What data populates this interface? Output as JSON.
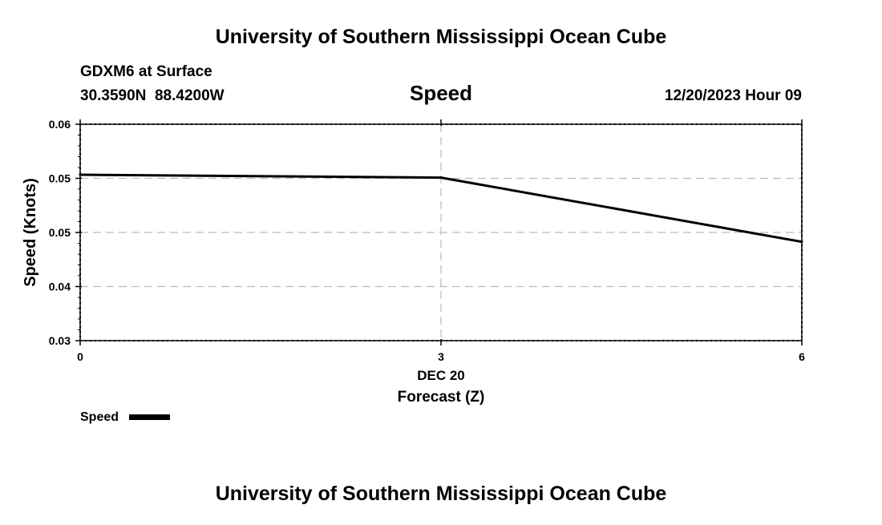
{
  "header": {
    "title": "University of Southern Mississippi Ocean Cube",
    "station": "GDXM6 at Surface",
    "coords": "30.3590N  88.4200W",
    "datetime": "12/20/2023 Hour 09"
  },
  "footer": {
    "title": "University of Southern Mississippi Ocean Cube"
  },
  "chart_data": {
    "type": "line",
    "title": "Speed",
    "xlabel": "Forecast (Z)",
    "xlabel_date": "DEC 20",
    "ylabel": "Speed (Knots)",
    "xlim": [
      0,
      6
    ],
    "ylim": [
      0.03,
      0.06
    ],
    "x_ticks": [
      0,
      3,
      6
    ],
    "x_tick_labels": [
      "0",
      "3",
      "6"
    ],
    "y_ticks": [
      0.03,
      0.0375,
      0.045,
      0.0525,
      0.06
    ],
    "y_tick_labels": [
      "0.03",
      "0.04",
      "0.05",
      "0.05",
      "0.06"
    ],
    "grid": true,
    "legend_position": "bottom-left",
    "series": [
      {
        "name": "Speed",
        "color": "#000000",
        "x": [
          0,
          3,
          6
        ],
        "values": [
          0.053,
          0.0526,
          0.0437
        ]
      }
    ]
  }
}
